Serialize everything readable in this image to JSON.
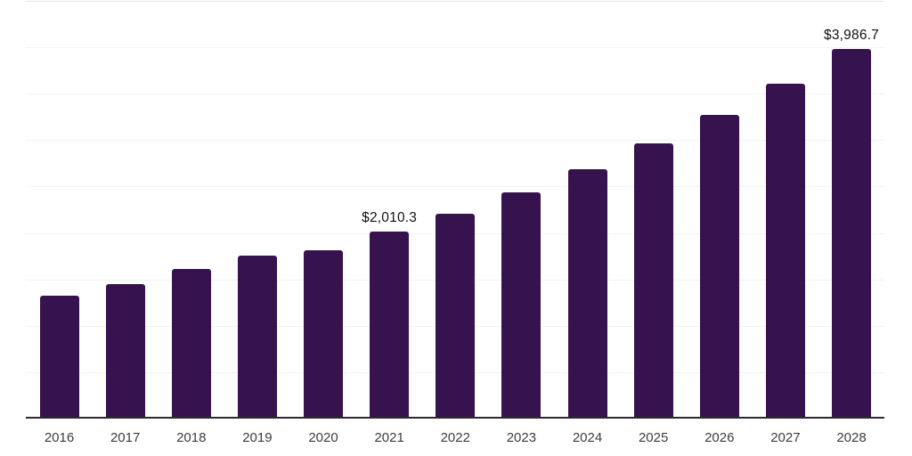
{
  "chart_data": {
    "type": "bar",
    "title": "",
    "categories": [
      "2016",
      "2017",
      "2018",
      "2019",
      "2020",
      "2021",
      "2022",
      "2023",
      "2024",
      "2025",
      "2026",
      "2027",
      "2028"
    ],
    "values": [
      1325,
      1450,
      1610,
      1755,
      1815,
      2010.3,
      2210,
      2440,
      2690,
      2965,
      3270,
      3610,
      3986.7
    ],
    "data_labels": [
      {
        "index": 5,
        "text": "$2,010.3"
      },
      {
        "index": 12,
        "text": "$3,986.7"
      }
    ],
    "xlabel": "",
    "ylabel": "",
    "ylim": [
      0,
      4500
    ],
    "gridline_step": 500,
    "grid": true,
    "legend": false,
    "y_tick_labels_shown": false
  },
  "colors": {
    "bar": "#36124e",
    "gridline": "#f2f2f2",
    "top_gridline": "#e6e6e6",
    "axis_line": "#2b2b2b",
    "data_label_text": "#111111",
    "x_tick_text": "#3d3d3d",
    "background": "#ffffff"
  }
}
